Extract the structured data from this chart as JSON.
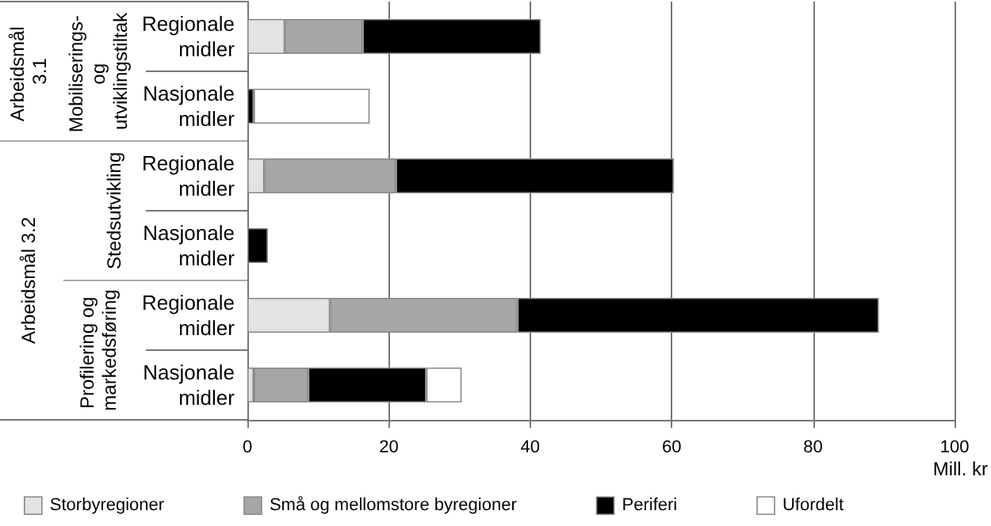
{
  "chart_data": {
    "type": "bar",
    "orientation": "horizontal",
    "stacked": true,
    "xlabel": "Mill. kr",
    "categories": [
      "Regionale midler",
      "Nasjonale midler",
      "Regionale midler",
      "Nasjonale midler",
      "Regionale midler",
      "Nasjonale midler"
    ],
    "series": [
      {
        "name": "Storbyregioner",
        "color": "#e3e3e3",
        "values": [
          5.3,
          0,
          2.4,
          0,
          11.7,
          0.9
        ]
      },
      {
        "name": "Små og mellomstore byregioner",
        "color": "#a6a6a6",
        "values": [
          11.0,
          0,
          18.6,
          0,
          26.5,
          7.7
        ]
      },
      {
        "name": "Periferi",
        "color": "#000000",
        "values": [
          25.2,
          0.9,
          39.3,
          2.9,
          51.1,
          16.7
        ]
      },
      {
        "name": "Ufordelt",
        "color": "#ffffff",
        "values": [
          0,
          16.4,
          0,
          0,
          0,
          5.0
        ]
      }
    ],
    "annotations": [
      "Arbeidsmål 3.1",
      "Mobiliserings- og utviklingstiltak",
      "Arbeidsmål 3.2",
      "Stedsutvikling",
      "Profilering og markedsføring"
    ],
    "xlim": [
      0,
      100
    ],
    "xticks": [
      0,
      20,
      40,
      60,
      80,
      100
    ],
    "grid": "x",
    "legend": "bottom"
  }
}
